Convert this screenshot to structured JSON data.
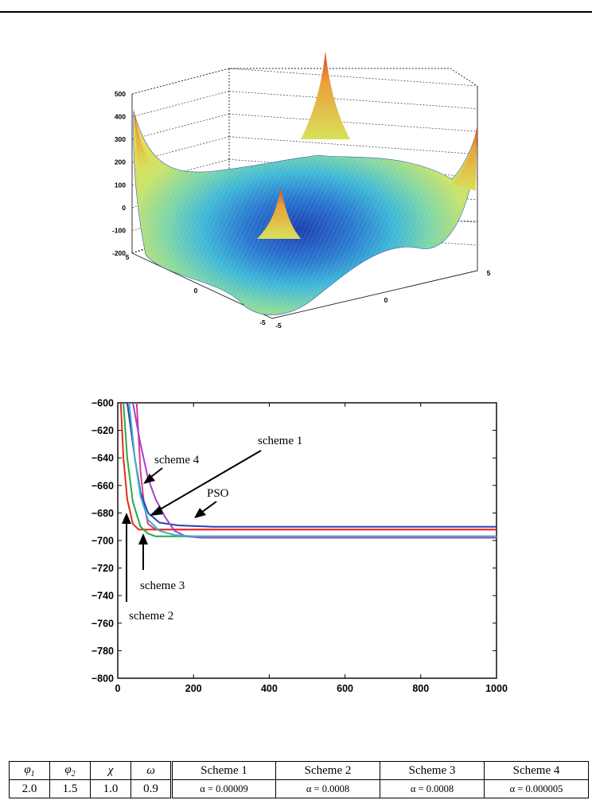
{
  "chart_data": [
    {
      "type": "surface",
      "title": "",
      "zlim": [
        -200,
        500
      ],
      "z_ticks": [
        "500",
        "400",
        "300",
        "200",
        "100",
        "0",
        "-100",
        "-200"
      ],
      "x_ticks": [
        "-5",
        "0",
        "5"
      ],
      "y_ticks": [
        "-5",
        "0",
        "5"
      ],
      "grid": true,
      "colormap": "jet"
    },
    {
      "type": "line",
      "title": "",
      "xlabel": "",
      "ylabel": "",
      "xlim": [
        0,
        1000
      ],
      "ylim": [
        -800,
        -600
      ],
      "x_ticks": [
        "0",
        "200",
        "400",
        "600",
        "800",
        "1000"
      ],
      "y_ticks": [
        "-600",
        "-620",
        "-640",
        "-660",
        "-680",
        "-700",
        "-720",
        "-740",
        "-760",
        "-780",
        "-800"
      ],
      "grid": false,
      "series": [
        {
          "name": "PSO",
          "color": "#d63a8c",
          "points": [
            [
              50,
              -600
            ],
            [
              60,
              -650
            ],
            [
              70,
              -675
            ],
            [
              80,
              -688
            ],
            [
              100,
              -692
            ],
            [
              1000,
              -692
            ]
          ]
        },
        {
          "name": "scheme 1",
          "color": "#2d3fb5",
          "points": [
            [
              25,
              -600
            ],
            [
              45,
              -640
            ],
            [
              60,
              -665
            ],
            [
              80,
              -680
            ],
            [
              110,
              -687
            ],
            [
              160,
              -689
            ],
            [
              250,
              -690
            ],
            [
              1000,
              -690
            ]
          ]
        },
        {
          "name": "scheme 2",
          "color": "#e8291c",
          "points": [
            [
              8,
              -600
            ],
            [
              15,
              -640
            ],
            [
              25,
              -670
            ],
            [
              40,
              -688
            ],
            [
              55,
              -692
            ],
            [
              1000,
              -692
            ]
          ]
        },
        {
          "name": "scheme 3",
          "color": "#25a84c",
          "points": [
            [
              15,
              -600
            ],
            [
              25,
              -640
            ],
            [
              40,
              -672
            ],
            [
              60,
              -690
            ],
            [
              80,
              -695
            ],
            [
              100,
              -697
            ],
            [
              1000,
              -697
            ]
          ]
        },
        {
          "name": "scheme 4",
          "color": "#a83fc9",
          "points": [
            [
              40,
              -600
            ],
            [
              60,
              -630
            ],
            [
              80,
              -655
            ],
            [
              100,
              -670
            ],
            [
              125,
              -683
            ],
            [
              150,
              -693
            ],
            [
              180,
              -697
            ],
            [
              220,
              -698
            ],
            [
              1000,
              -698
            ]
          ]
        },
        {
          "name": "",
          "color": "#3bb3c4",
          "points": [
            [
              30,
              -600
            ],
            [
              45,
              -640
            ],
            [
              60,
              -668
            ],
            [
              80,
              -685
            ],
            [
              110,
              -693
            ],
            [
              150,
              -696
            ],
            [
              200,
              -697
            ],
            [
              1000,
              -697
            ]
          ]
        }
      ]
    }
  ],
  "table": {
    "headers": [
      "φ1",
      "φ2",
      "χ",
      "ω",
      "Scheme 1",
      "Scheme 2",
      "Scheme 3",
      "Scheme 4"
    ],
    "values": [
      "2.0",
      "1.5",
      "1.0",
      "0.9",
      "α = 0.00009",
      "α = 0.0008",
      "α = 0.0008",
      "α = 0.000005"
    ]
  },
  "annotations": {
    "scheme1": "scheme 1",
    "scheme4": "scheme 4",
    "pso": "PSO",
    "scheme3": "scheme 3",
    "scheme2": "scheme 2"
  }
}
